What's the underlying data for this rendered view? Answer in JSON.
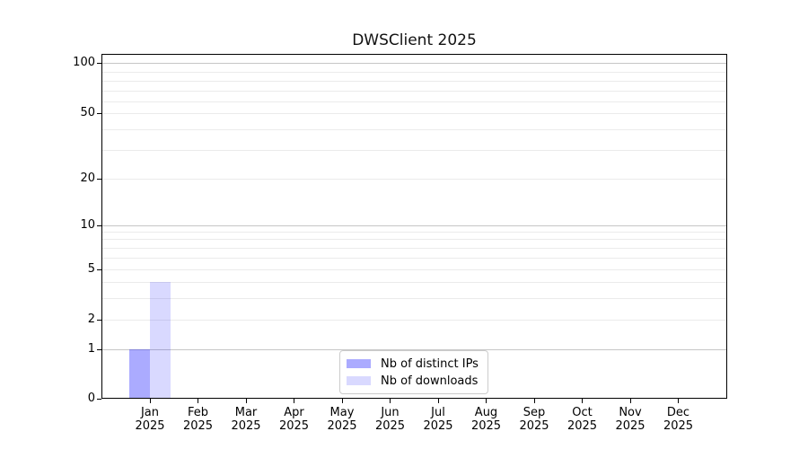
{
  "chart_data": {
    "type": "bar",
    "title": "DWSClient 2025",
    "x_year": "2025",
    "months": [
      "Jan",
      "Feb",
      "Mar",
      "Apr",
      "May",
      "Jun",
      "Jul",
      "Aug",
      "Sep",
      "Oct",
      "Nov",
      "Dec"
    ],
    "series": [
      {
        "name": "Nb of distinct IPs",
        "base_color": "#0000ff",
        "alpha": 0.33,
        "values": [
          1,
          0,
          0,
          0,
          0,
          0,
          0,
          0,
          0,
          0,
          0,
          0
        ]
      },
      {
        "name": "Nb of downloads",
        "base_color": "#0000ff",
        "alpha": 0.15,
        "values": [
          4,
          0,
          0,
          0,
          0,
          0,
          0,
          0,
          0,
          0,
          0,
          0
        ]
      }
    ],
    "y_axis": {
      "scale": "asinh",
      "range": [
        0,
        100
      ],
      "labeled_ticks": [
        0,
        1,
        2,
        5,
        10,
        20,
        50,
        100
      ],
      "major_gridlines": [
        1,
        10,
        100
      ],
      "minor_gridlines": [
        2,
        3,
        4,
        5,
        6,
        7,
        8,
        9,
        20,
        30,
        40,
        50,
        60,
        70,
        80,
        90
      ],
      "grid": "on"
    },
    "legend": {
      "position": "lower center",
      "entries": [
        "Nb of distinct IPs",
        "Nb of downloads"
      ]
    },
    "colors": {
      "bar_distinct_ips": "#aaaaf8",
      "bar_downloads": "#d9d9fa",
      "gridline_major": "#c6c6c6",
      "gridline_minor": "#ebebeb",
      "spine": "#000000"
    }
  }
}
